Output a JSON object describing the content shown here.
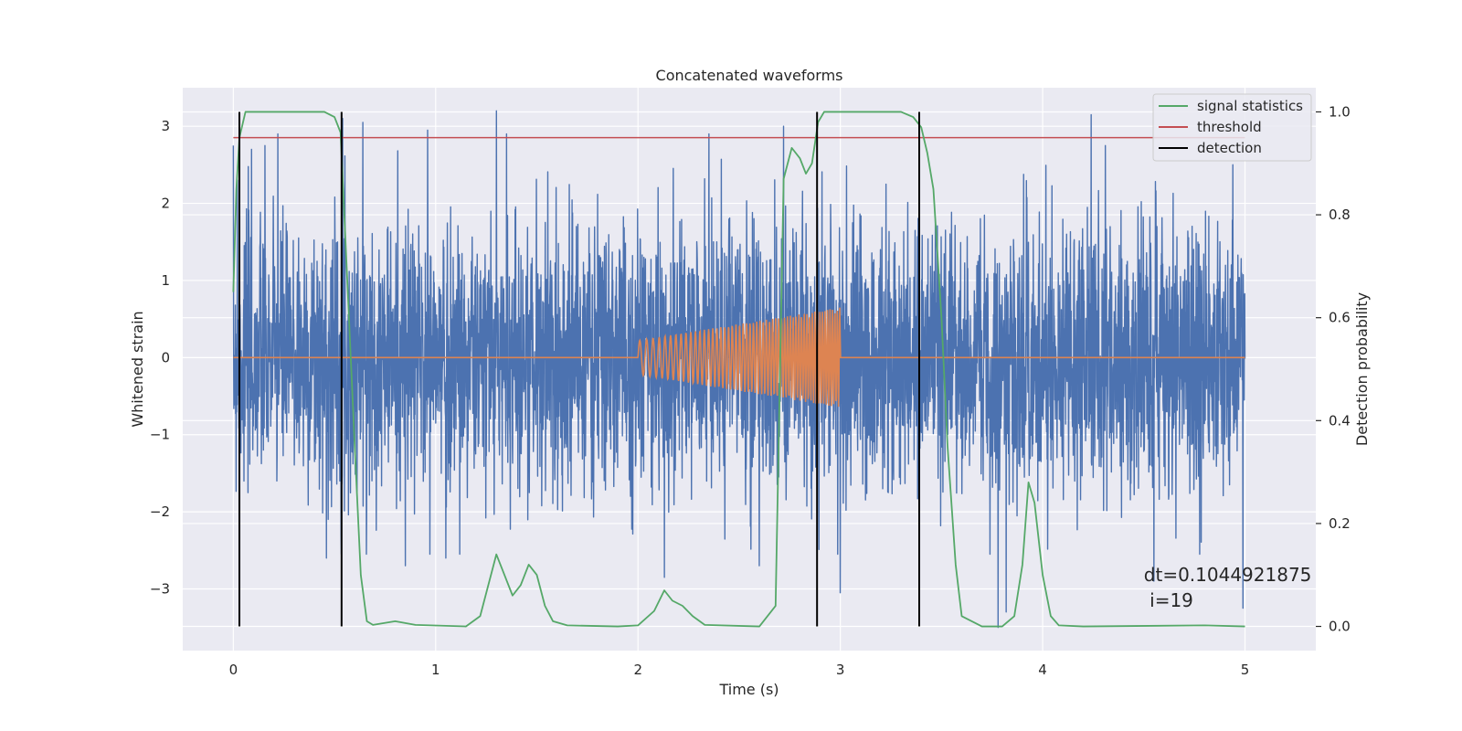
{
  "chart_data": {
    "type": "line",
    "title": "Concatenated waveforms",
    "xlabel": "Time (s)",
    "ylabel": "Whitened strain",
    "y2label": "Detection probability",
    "xlim": [
      -0.25,
      5.35
    ],
    "ylim": [
      -3.8,
      3.5
    ],
    "y2lim": [
      -0.047,
      1.047
    ],
    "xticks": [
      0,
      1,
      2,
      3,
      4,
      5
    ],
    "yticks": [
      -3,
      -2,
      -1,
      0,
      1,
      2,
      3
    ],
    "y2ticks": [
      0.0,
      0.2,
      0.4,
      0.6,
      0.8,
      1.0
    ],
    "xtick_labels": [
      "0",
      "1",
      "2",
      "3",
      "4",
      "5"
    ],
    "ytick_labels": [
      "−3",
      "−2",
      "−1",
      "0",
      "1",
      "2",
      "3"
    ],
    "y2tick_labels": [
      "0.0",
      "0.2",
      "0.4",
      "0.6",
      "0.8",
      "1.0"
    ],
    "grid": true,
    "legend_position": "top-right",
    "legend": [
      "signal statistics",
      "threshold",
      "detection"
    ],
    "colors": {
      "strain": "#4c72b0",
      "waveform": "#dd8452",
      "signal_statistics": "#55a868",
      "threshold": "#c44e52",
      "detection": "#000000",
      "background": "#eaeaf2",
      "grid": "#ffffff"
    },
    "series": [
      {
        "id": "strain",
        "axis": "left",
        "style": "noise",
        "x_range": [
          0,
          5
        ],
        "approx_amplitude": 1.0,
        "peaks": [
          {
            "x": 0.02,
            "y": 2.3
          },
          {
            "x": 0.09,
            "y": 2.7
          },
          {
            "x": 0.22,
            "y": 2.9
          },
          {
            "x": 0.54,
            "y": 3.1
          },
          {
            "x": 0.64,
            "y": 3.05
          },
          {
            "x": 0.96,
            "y": 2.95
          },
          {
            "x": 1.3,
            "y": 3.2
          },
          {
            "x": 1.35,
            "y": 2.9
          },
          {
            "x": 2.35,
            "y": 2.9
          },
          {
            "x": 2.72,
            "y": 3.0
          },
          {
            "x": 4.24,
            "y": 3.15
          },
          {
            "x": 4.94,
            "y": 2.5
          },
          {
            "x": 3.78,
            "y": -3.5
          },
          {
            "x": 3.82,
            "y": -3.3
          },
          {
            "x": 4.99,
            "y": -3.25
          },
          {
            "x": 0.46,
            "y": -2.6
          },
          {
            "x": 0.85,
            "y": -2.7
          },
          {
            "x": 1.05,
            "y": -2.6
          },
          {
            "x": 2.13,
            "y": -2.85
          },
          {
            "x": 2.6,
            "y": -2.7
          },
          {
            "x": 3.0,
            "y": -3.05
          },
          {
            "x": 4.55,
            "y": -2.9
          }
        ]
      },
      {
        "id": "waveform",
        "axis": "left",
        "style": "chirp",
        "x_range": [
          2.0,
          3.0
        ],
        "amplitude_start": 0.22,
        "amplitude_end": 0.65,
        "freq_start_hz": 28,
        "freq_end_hz": 85
      },
      {
        "id": "signal_statistics",
        "name": "signal statistics",
        "axis": "right",
        "x": [
          0.0,
          0.015,
          0.03,
          0.06,
          0.1,
          0.45,
          0.5,
          0.53,
          0.56,
          0.6,
          0.63,
          0.66,
          0.69,
          0.8,
          0.9,
          1.15,
          1.22,
          1.26,
          1.3,
          1.34,
          1.38,
          1.42,
          1.46,
          1.5,
          1.54,
          1.58,
          1.65,
          1.9,
          2.0,
          2.08,
          2.13,
          2.17,
          2.22,
          2.27,
          2.33,
          2.6,
          2.68,
          2.72,
          2.76,
          2.8,
          2.83,
          2.86,
          2.89,
          2.92,
          2.96,
          3.3,
          3.36,
          3.4,
          3.43,
          3.46,
          3.5,
          3.53,
          3.57,
          3.6,
          3.7,
          3.8,
          3.86,
          3.9,
          3.93,
          3.96,
          4.0,
          4.04,
          4.08,
          4.2,
          4.8,
          5.0
        ],
        "y": [
          0.65,
          0.85,
          0.95,
          1.0,
          1.0,
          1.0,
          0.99,
          0.96,
          0.7,
          0.35,
          0.1,
          0.01,
          0.003,
          0.01,
          0.003,
          0.0,
          0.02,
          0.08,
          0.14,
          0.1,
          0.06,
          0.08,
          0.12,
          0.1,
          0.04,
          0.01,
          0.002,
          0.0,
          0.002,
          0.03,
          0.07,
          0.05,
          0.04,
          0.02,
          0.003,
          0.0,
          0.04,
          0.87,
          0.93,
          0.91,
          0.88,
          0.9,
          0.98,
          1.0,
          1.0,
          1.0,
          0.99,
          0.97,
          0.92,
          0.85,
          0.6,
          0.35,
          0.12,
          0.02,
          0.0,
          0.0,
          0.02,
          0.12,
          0.28,
          0.24,
          0.1,
          0.02,
          0.002,
          0.0,
          0.002,
          0.0
        ]
      },
      {
        "id": "threshold",
        "name": "threshold",
        "axis": "right",
        "x": [
          0.0,
          5.0
        ],
        "y": [
          0.95,
          0.95
        ]
      },
      {
        "id": "detection",
        "name": "detection",
        "axis": "right",
        "style": "vlines",
        "x": [
          0.03,
          0.535,
          2.885,
          3.39
        ],
        "ymin": 0.0,
        "ymax": 1.0
      }
    ],
    "annotations": [
      {
        "id": "dt",
        "text": "dt=0.1044921875",
        "x": 4.5,
        "y": -2.9
      },
      {
        "id": "i",
        "text": " i=19",
        "x": 4.5,
        "y": -3.23
      }
    ]
  }
}
